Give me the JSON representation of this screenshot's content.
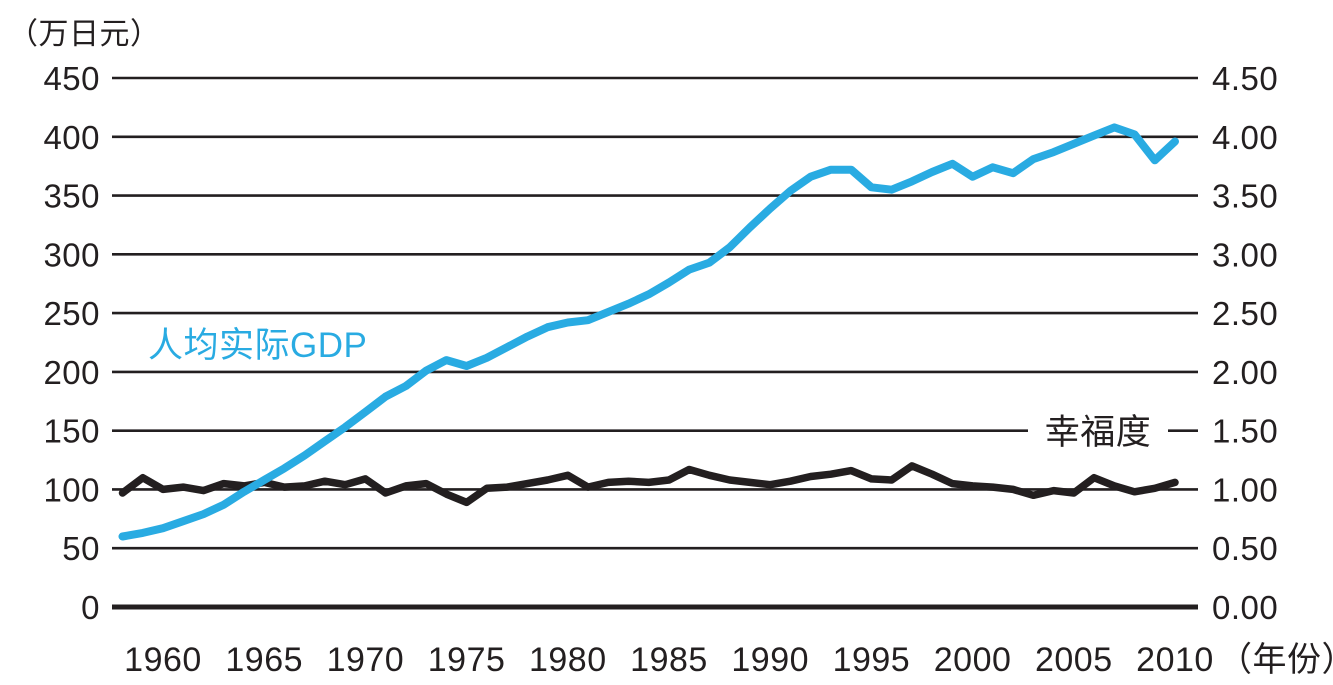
{
  "chart_data": {
    "type": "line",
    "title": "",
    "grid": "horizontal",
    "x": [
      1958,
      1959,
      1960,
      1961,
      1962,
      1963,
      1964,
      1965,
      1966,
      1967,
      1968,
      1969,
      1970,
      1971,
      1972,
      1973,
      1974,
      1975,
      1976,
      1977,
      1978,
      1979,
      1980,
      1981,
      1982,
      1983,
      1984,
      1985,
      1986,
      1987,
      1988,
      1989,
      1990,
      1991,
      1992,
      1993,
      1994,
      1995,
      1996,
      1997,
      1998,
      1999,
      2000,
      2001,
      2002,
      2003,
      2004,
      2005,
      2006,
      2007,
      2008,
      2009,
      2010
    ],
    "series": [
      {
        "name": "人均实际GDP",
        "axis": "left",
        "color": "#29abe2",
        "values": [
          60,
          63,
          67,
          73,
          79,
          87,
          98,
          108,
          118,
          129,
          141,
          153,
          166,
          179,
          188,
          201,
          210,
          205,
          212,
          221,
          230,
          238,
          242,
          244,
          251,
          258,
          266,
          276,
          287,
          293,
          306,
          323,
          339,
          354,
          366,
          372,
          372,
          357,
          355,
          362,
          370,
          377,
          366,
          374,
          369,
          381,
          387,
          394,
          401,
          408,
          402,
          380,
          396
        ]
      },
      {
        "name": "幸福度",
        "axis": "right",
        "color": "#231f20",
        "values": [
          0.97,
          1.1,
          1.0,
          1.02,
          0.99,
          1.05,
          1.03,
          1.06,
          1.02,
          1.03,
          1.07,
          1.04,
          1.09,
          0.97,
          1.03,
          1.05,
          0.96,
          0.89,
          1.01,
          1.02,
          1.05,
          1.08,
          1.12,
          1.02,
          1.06,
          1.07,
          1.06,
          1.08,
          1.17,
          1.12,
          1.08,
          1.06,
          1.04,
          1.07,
          1.11,
          1.13,
          1.16,
          1.09,
          1.08,
          1.2,
          1.13,
          1.05,
          1.03,
          1.02,
          1.0,
          0.95,
          0.99,
          0.97,
          1.1,
          1.03,
          0.98,
          1.01,
          1.06
        ]
      }
    ],
    "left_axis": {
      "unit": "（万日元）",
      "ticks": [
        450,
        400,
        350,
        300,
        250,
        200,
        150,
        100,
        50,
        0
      ],
      "range": [
        0,
        450
      ]
    },
    "right_axis": {
      "ticks": [
        "4.50",
        "4.00",
        "3.50",
        "3.00",
        "2.50",
        "2.00",
        "1.50",
        "1.00",
        "0.50",
        "0.00"
      ],
      "range": [
        0,
        4.5
      ]
    },
    "x_axis": {
      "unit": "（年份）",
      "ticks": [
        1960,
        1965,
        1970,
        1975,
        1980,
        1985,
        1990,
        1995,
        2000,
        2005,
        2010
      ]
    },
    "colors": {
      "gdp_line": "#29abe2",
      "happiness_line": "#231f20",
      "grid": "#231f20",
      "background": "#ffffff"
    },
    "legend_position": "inline-annotations"
  }
}
